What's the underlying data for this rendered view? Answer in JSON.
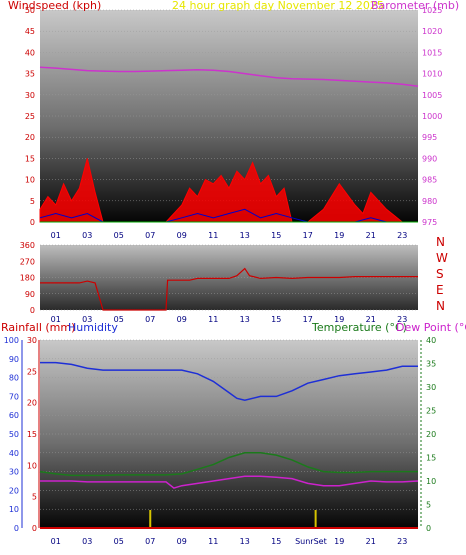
{
  "colors": {
    "wind_speed": "#ff0000",
    "wind_gust": "#0000cc",
    "barometer": "#cc33cc",
    "direction": "#cc0000",
    "humidity": "#1e2fd6",
    "temperature": "#1b7a1b",
    "dew_point": "#cc22cc",
    "rainfall": "#cc0000",
    "sun_marker": "#d6c400",
    "title": "#e6e600"
  },
  "chart_data": [
    {
      "type": "line",
      "title": "24 hour graph day   November 12 2025",
      "left_label": "Windspeed (kph)",
      "right_label": "Barometer (mb)",
      "x_ticks": [
        "01",
        "03",
        "05",
        "07",
        "09",
        "11",
        "13",
        "15",
        "17",
        "19",
        "21",
        "23"
      ],
      "left_ticks": [
        "0",
        "5",
        "10",
        "15",
        "20",
        "25",
        "30",
        "35",
        "40",
        "45",
        "50"
      ],
      "right_ticks": [
        "975",
        "980",
        "985",
        "990",
        "995",
        "1000",
        "1005",
        "1010",
        "1015",
        "1020",
        "1025"
      ],
      "left_ylim": [
        0,
        50
      ],
      "right_ylim": [
        975,
        1025
      ],
      "xlim": [
        0,
        24
      ],
      "series": [
        {
          "name": "Barometer",
          "x": [
            0,
            1,
            2,
            3,
            4,
            5,
            6,
            7,
            8,
            9,
            10,
            11,
            12,
            13,
            14,
            15,
            16,
            17,
            18,
            19,
            20,
            21,
            22,
            23,
            24
          ],
          "y": [
            1011.5,
            1011.3,
            1011,
            1010.7,
            1010.6,
            1010.5,
            1010.5,
            1010.6,
            1010.7,
            1010.8,
            1010.9,
            1010.8,
            1010.5,
            1010,
            1009.5,
            1009,
            1008.8,
            1008.7,
            1008.6,
            1008.4,
            1008.2,
            1008,
            1007.8,
            1007.5,
            1007
          ]
        },
        {
          "name": "Wind speed",
          "x": [
            0,
            0.5,
            1,
            1.5,
            2,
            2.5,
            3,
            3.5,
            4,
            8,
            9,
            9.5,
            10,
            10.5,
            11,
            11.5,
            12,
            12.5,
            13,
            13.5,
            14,
            14.5,
            15,
            15.5,
            16,
            17,
            18,
            19,
            20,
            20.5,
            21,
            22,
            23,
            24
          ],
          "y": [
            3,
            6,
            4,
            9,
            5,
            8,
            15,
            7,
            0,
            0,
            4,
            8,
            6,
            10,
            9,
            11,
            8,
            12,
            10,
            14,
            9,
            11,
            6,
            8,
            0,
            0,
            3,
            9,
            4,
            2,
            7,
            3,
            0,
            0
          ]
        },
        {
          "name": "Wind gust",
          "x": [
            0,
            1,
            2,
            3,
            4,
            8,
            9,
            10,
            11,
            12,
            13,
            14,
            15,
            16,
            17,
            20,
            21,
            22,
            24
          ],
          "y": [
            1,
            2,
            1,
            2,
            0,
            0,
            1,
            2,
            1,
            2,
            3,
            1,
            2,
            1,
            0,
            0,
            1,
            0,
            0
          ]
        }
      ]
    },
    {
      "type": "line",
      "direction_labels": [
        "N",
        "W",
        "S",
        "E",
        "N"
      ],
      "left_ticks": [
        "0",
        "90",
        "180",
        "270",
        "360"
      ],
      "x_ticks": [
        "01",
        "03",
        "05",
        "07",
        "09",
        "11",
        "13",
        "15",
        "17",
        "19",
        "21",
        "23"
      ],
      "ylim": [
        0,
        360
      ],
      "xlim": [
        0,
        24
      ],
      "series": [
        {
          "name": "Wind direction",
          "x": [
            0,
            2.5,
            3,
            3.5,
            4,
            8,
            8.1,
            9.5,
            10,
            12,
            12.5,
            13,
            13.3,
            14,
            15,
            16,
            17,
            19,
            20,
            22,
            24
          ],
          "y": [
            150,
            150,
            160,
            150,
            0,
            0,
            165,
            165,
            175,
            175,
            190,
            230,
            190,
            175,
            180,
            175,
            180,
            180,
            185,
            185,
            185
          ]
        }
      ]
    },
    {
      "type": "line",
      "rain_label": "Rainfall (mm)",
      "humidity_label": "Humidity",
      "temperature_label": "Temperature (°C)",
      "dew_label": "Dew Point (°C)",
      "sun_label": "SunrSet",
      "x_ticks": [
        "01",
        "03",
        "05",
        "07",
        "09",
        "11",
        "13",
        "15",
        "17",
        "19",
        "21",
        "23"
      ],
      "humidity_ticks": [
        "0",
        "10",
        "20",
        "30",
        "40",
        "50",
        "60",
        "70",
        "80",
        "90",
        "100"
      ],
      "rain_ticks": [
        "0",
        "5",
        "10",
        "15",
        "20",
        "25",
        "30"
      ],
      "temp_ticks": [
        "0",
        "5",
        "10",
        "15",
        "20",
        "25",
        "30",
        "35",
        "40"
      ],
      "humidity_ylim": [
        0,
        100
      ],
      "rain_ylim": [
        0,
        30
      ],
      "temp_ylim": [
        0,
        40
      ],
      "xlim": [
        0,
        24
      ],
      "sunrise_x": 7,
      "sunset_x": 17.5,
      "series": [
        {
          "name": "Humidity",
          "x": [
            0,
            1,
            2,
            3,
            4,
            5,
            6,
            7,
            8,
            9,
            10,
            11,
            12,
            12.5,
            13,
            14,
            15,
            16,
            17,
            18,
            19,
            20,
            21,
            22,
            23,
            24
          ],
          "y": [
            88,
            88,
            87,
            85,
            84,
            84,
            84,
            84,
            84,
            84,
            82,
            78,
            72,
            69,
            68,
            70,
            70,
            73,
            77,
            79,
            81,
            82,
            83,
            84,
            86,
            86
          ]
        },
        {
          "name": "Temperature",
          "x": [
            0,
            1,
            2,
            3,
            4,
            5,
            6,
            7,
            8,
            9,
            10,
            11,
            12,
            13,
            14,
            15,
            16,
            17,
            18,
            19,
            20,
            21,
            22,
            23,
            24
          ],
          "y": [
            12,
            11.5,
            11.2,
            11.2,
            11.2,
            11.3,
            11.3,
            11.3,
            11.3,
            11.5,
            12.5,
            13.5,
            15,
            16,
            16,
            15.5,
            14.5,
            13,
            12,
            11.8,
            11.8,
            12,
            12,
            12,
            12
          ]
        },
        {
          "name": "Dew point",
          "x": [
            0,
            1,
            2,
            3,
            4,
            5,
            6,
            7,
            8,
            8.5,
            9,
            10,
            11,
            12,
            13,
            14,
            15,
            16,
            17,
            18,
            19,
            20,
            21,
            22,
            23,
            24
          ],
          "y": [
            10,
            10,
            10,
            9.8,
            9.8,
            9.8,
            9.8,
            9.8,
            9.8,
            8.5,
            9,
            9.5,
            10,
            10.5,
            11,
            11,
            10.8,
            10.5,
            9.5,
            9,
            9,
            9.5,
            10,
            9.8,
            9.8,
            10
          ]
        },
        {
          "name": "Rainfall",
          "x": [
            0,
            24
          ],
          "y": [
            0,
            0
          ]
        }
      ]
    }
  ]
}
